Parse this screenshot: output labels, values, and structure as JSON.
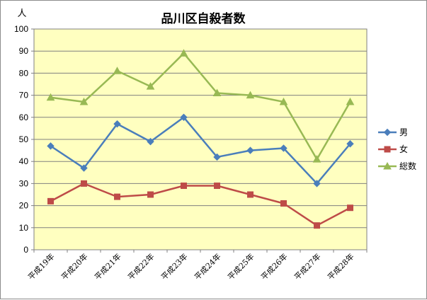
{
  "chart_data": {
    "type": "line",
    "title": "品川区自殺者数",
    "ylabel": "人",
    "xlabel": "",
    "ylim": [
      0,
      100
    ],
    "yticks": [
      0,
      10,
      20,
      30,
      40,
      50,
      60,
      70,
      80,
      90,
      100
    ],
    "categories": [
      "平成19年",
      "平成20年",
      "平成21年",
      "平成22年",
      "平成23年",
      "平成24年",
      "平成25年",
      "平成26年",
      "平成27年",
      "平成28年"
    ],
    "series": [
      {
        "name": "男",
        "color": "#4a7ebb",
        "marker": "diamond",
        "values": [
          47,
          37,
          57,
          49,
          60,
          42,
          45,
          46,
          30,
          48
        ]
      },
      {
        "name": "女",
        "color": "#be4b48",
        "marker": "square",
        "values": [
          22,
          30,
          24,
          25,
          29,
          29,
          25,
          21,
          11,
          19
        ]
      },
      {
        "name": "総数",
        "color": "#98b954",
        "marker": "triangle",
        "values": [
          69,
          67,
          81,
          74,
          89,
          71,
          70,
          67,
          41,
          67
        ]
      }
    ],
    "grid": true,
    "plot_background": "#ffffc0",
    "legend_position": "right"
  }
}
